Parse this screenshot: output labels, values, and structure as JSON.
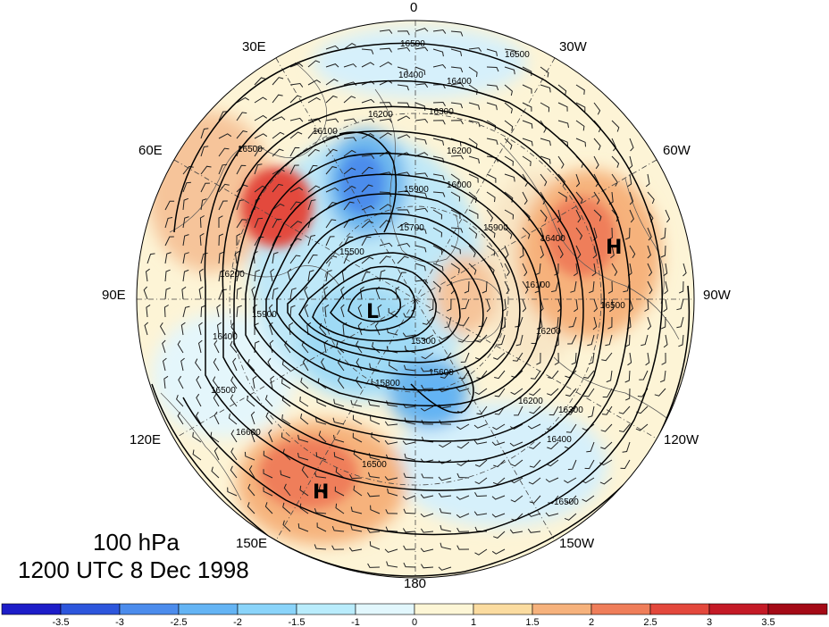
{
  "level_label": "100 hPa",
  "time_label": "1200 UTC 8 Dec 1998",
  "longitude_labels": [
    "0",
    "30W",
    "60W",
    "90W",
    "120W",
    "150W",
    "180",
    "150E",
    "120E",
    "90E",
    "60E",
    "30E"
  ],
  "contour_labels": [
    "16500",
    "16400",
    "16300",
    "16200",
    "16100",
    "16000",
    "15900",
    "15800",
    "15700",
    "15600",
    "15500",
    "15400",
    "15300",
    "16600"
  ],
  "pressure_centers": [
    {
      "type": "H",
      "region": "northern Canada"
    },
    {
      "type": "L",
      "region": "Siberia / pole"
    },
    {
      "type": "H",
      "region": "western Pacific"
    }
  ],
  "colorbar": {
    "ticks": [
      "-3.5",
      "-3",
      "-2.5",
      "-2",
      "-1.5",
      "-1",
      "0",
      "1",
      "1.5",
      "2",
      "2.5",
      "3",
      "3.5"
    ],
    "colors": [
      "#1d1dc8",
      "#2d56dc",
      "#4c8cec",
      "#64b4f4",
      "#8ad4fa",
      "#b9ecfc",
      "#e2f7fd",
      "#fdf6d6",
      "#fbdca0",
      "#f6b27c",
      "#ef7e5a",
      "#e3483c",
      "#c41a26",
      "#a40a16"
    ]
  }
}
